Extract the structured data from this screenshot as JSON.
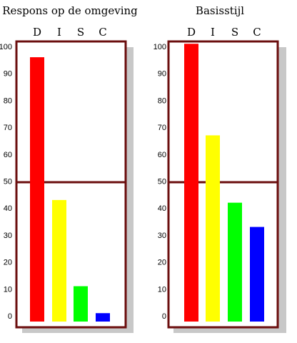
{
  "chart_data": [
    {
      "type": "bar",
      "title": "Respons op de omgeving",
      "categories": [
        "D",
        "I",
        "S",
        "C"
      ],
      "values": [
        96,
        43,
        11,
        1
      ],
      "ylim": [
        0,
        100
      ],
      "yticks": [
        0,
        10,
        20,
        30,
        40,
        50,
        60,
        70,
        80,
        90,
        100
      ],
      "reference_line": 50,
      "colors": [
        "#ff0000",
        "#ffff00",
        "#00ff00",
        "#0000ff"
      ],
      "frame_color": "#6b0e0e"
    },
    {
      "type": "bar",
      "title": "Basisstijl",
      "categories": [
        "D",
        "I",
        "S",
        "C"
      ],
      "values": [
        101,
        67,
        42,
        33
      ],
      "ylim": [
        0,
        100
      ],
      "yticks": [
        0,
        10,
        20,
        30,
        40,
        50,
        60,
        70,
        80,
        90,
        100
      ],
      "reference_line": 50,
      "colors": [
        "#ff0000",
        "#ffff00",
        "#00ff00",
        "#0000ff"
      ],
      "frame_color": "#6b0e0e"
    }
  ]
}
